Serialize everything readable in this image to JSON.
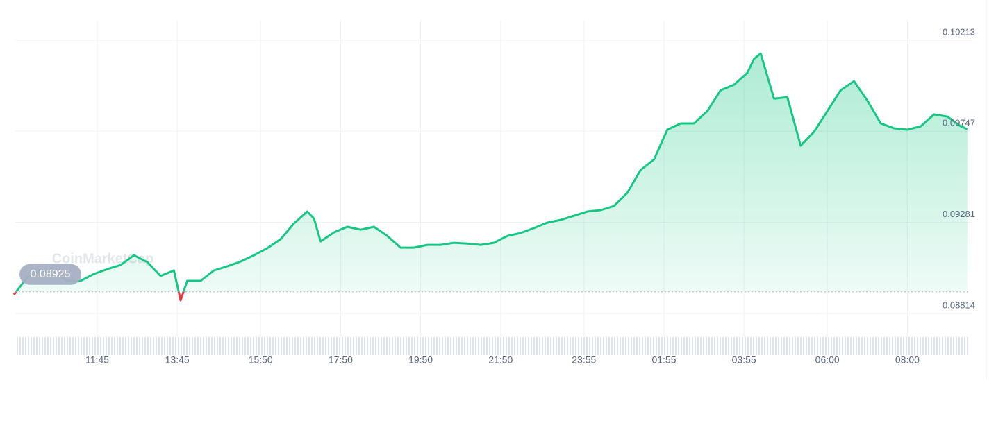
{
  "chart_data": {
    "type": "line",
    "watermark": "CoinMarketCap",
    "baseline": 0.08925,
    "x": [
      "09:40",
      "10:00",
      "10:20",
      "10:40",
      "11:00",
      "11:20",
      "11:40",
      "12:00",
      "12:20",
      "12:40",
      "13:00",
      "13:20",
      "13:40",
      "13:50",
      "14:00",
      "14:20",
      "14:40",
      "15:00",
      "15:20",
      "15:40",
      "16:00",
      "16:20",
      "16:40",
      "17:00",
      "17:10",
      "17:20",
      "17:40",
      "18:00",
      "18:20",
      "18:40",
      "19:00",
      "19:20",
      "19:40",
      "20:00",
      "20:20",
      "20:40",
      "21:00",
      "21:20",
      "21:40",
      "22:00",
      "22:20",
      "22:40",
      "23:00",
      "23:20",
      "23:40",
      "00:00",
      "00:20",
      "00:40",
      "01:00",
      "01:20",
      "01:40",
      "02:00",
      "02:20",
      "02:40",
      "03:00",
      "03:20",
      "03:40",
      "04:00",
      "04:10",
      "04:20",
      "04:40",
      "05:00",
      "05:20",
      "05:40",
      "06:00",
      "06:20",
      "06:40",
      "07:00",
      "07:20",
      "07:40",
      "08:00",
      "08:20",
      "08:40",
      "09:00",
      "09:20",
      "09:30"
    ],
    "series": [
      {
        "color": "#16c784",
        "below_color": "#ea3943",
        "values": [
          0.0891,
          0.08999,
          0.09034,
          0.09023,
          0.08981,
          0.08981,
          0.09016,
          0.09041,
          0.09062,
          0.09112,
          0.09077,
          0.09006,
          0.09034,
          0.08881,
          0.08981,
          0.08981,
          0.09034,
          0.09055,
          0.0908,
          0.09112,
          0.09148,
          0.09194,
          0.09275,
          0.09336,
          0.093,
          0.09183,
          0.09229,
          0.09258,
          0.09243,
          0.09258,
          0.09211,
          0.09151,
          0.09151,
          0.09165,
          0.09165,
          0.09176,
          0.09172,
          0.09165,
          0.09176,
          0.09211,
          0.09226,
          0.09251,
          0.09279,
          0.09293,
          0.09314,
          0.09336,
          0.09343,
          0.09364,
          0.09432,
          0.09549,
          0.09602,
          0.09755,
          0.09787,
          0.09787,
          0.0985,
          0.09957,
          0.09985,
          0.10046,
          0.10117,
          0.10145,
          0.09914,
          0.09921,
          0.09673,
          0.09744,
          0.0985,
          0.09957,
          0.10003,
          0.09904,
          0.09787,
          0.09762,
          0.09755,
          0.09772,
          0.09833,
          0.09822,
          0.09772,
          0.09758
        ]
      }
    ],
    "xlim": [
      "09:40",
      "09:30"
    ],
    "xticks": [
      "11:45",
      "13:45",
      "15:50",
      "17:50",
      "19:50",
      "21:50",
      "23:55",
      "01:55",
      "03:55",
      "06:00",
      "08:00"
    ],
    "ylim": [
      0.08814,
      0.10213
    ],
    "yticks": [
      0.08814,
      0.09281,
      0.09747,
      0.10213
    ],
    "grid": true
  }
}
